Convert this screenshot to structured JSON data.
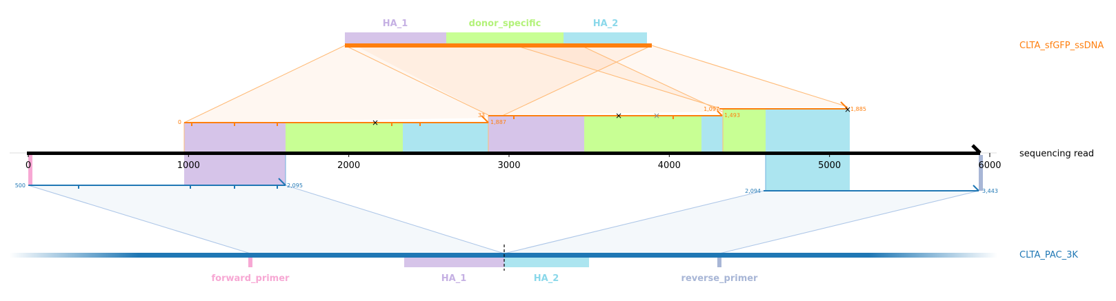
{
  "tracks": {
    "top": "CLTA_sfGFP_ssDNA",
    "middle": "sequencing read",
    "bottom": "CLTA_PAC_3K"
  },
  "axis": {
    "min": 0,
    "max": 6000,
    "ticks": [
      "0",
      "1000",
      "2000",
      "3000",
      "4000",
      "5000",
      "6000"
    ]
  },
  "donor_features": [
    {
      "label": "HA_1",
      "color": "#d6c4e9"
    },
    {
      "label": "donor_specific",
      "color": "#c8ff94"
    },
    {
      "label": "HA_2",
      "color": "#ace5f0"
    }
  ],
  "donor_alignments": [
    {
      "start_label": "0",
      "end_label": "1,887"
    },
    {
      "start_label": "33",
      "end_label": "1,493"
    },
    {
      "start_label": "1,097",
      "end_label": "1,885"
    }
  ],
  "target_alignments": [
    {
      "start_label": "500",
      "end_label": "2,095"
    },
    {
      "start_label": "2,094",
      "end_label": "3,443"
    }
  ],
  "target_features": [
    {
      "label": "forward_primer",
      "color": "#f7a8d4"
    },
    {
      "label": "HA_1",
      "color": "#d6c4e9"
    },
    {
      "label": "HA_2",
      "color": "#ace5f0"
    },
    {
      "label": "reverse_primer",
      "color": "#a8b6d6"
    }
  ],
  "colors": {
    "donor": "#ff7f0e",
    "target": "#1f77b4",
    "read": "#000000",
    "ha1": "#d6c4e9",
    "donor_specific": "#c8ff94",
    "ha2": "#ace5f0",
    "forward_primer": "#f7a8d4",
    "reverse_primer": "#a8b6d6"
  }
}
